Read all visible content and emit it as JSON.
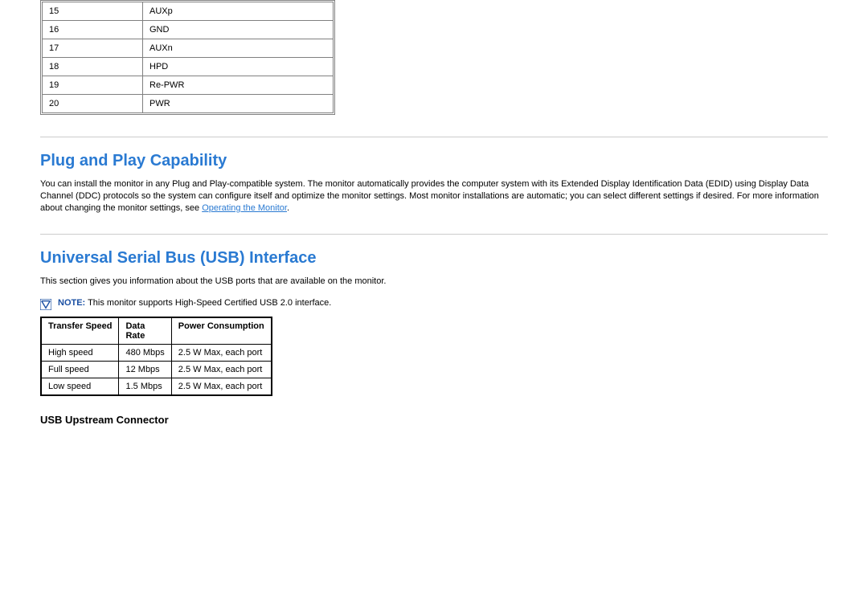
{
  "pin_table": {
    "col_widths": {
      "num": 108,
      "label": 220
    },
    "rows": [
      {
        "num": "15",
        "label": "AUXp"
      },
      {
        "num": "16",
        "label": "GND"
      },
      {
        "num": "17",
        "label": "AUXn"
      },
      {
        "num": "18",
        "label": "HPD"
      },
      {
        "num": "19",
        "label": "Re-PWR"
      },
      {
        "num": "20",
        "label": "PWR"
      }
    ]
  },
  "plug_and_play": {
    "title": "Plug and Play Capability",
    "body_before_link": "You can install the monitor in any Plug and Play-compatible system. The monitor automatically provides the computer system with its Extended Display Identification Data (EDID) using Display Data Channel (DDC) protocols so the system can configure itself and optimize the monitor settings. Most monitor installations are automatic; you can select different settings if desired. For more information about changing the monitor settings, see ",
    "link_text": "Operating the Monitor",
    "body_after_link": "."
  },
  "usb": {
    "title": "Universal Serial Bus (USB) Interface",
    "intro": "This section gives you information about the USB ports that are available on the monitor.",
    "note_label": "NOTE:",
    "note_text": " This monitor supports High-Speed Certified USB 2.0 interface.",
    "table": {
      "columns": [
        "Transfer Speed",
        "Data Rate",
        "Power Consumption"
      ],
      "rows": [
        [
          "High speed",
          "480 Mbps",
          "2.5 W Max, each port"
        ],
        [
          "Full speed",
          "12 Mbps",
          "2.5 W Max, each port"
        ],
        [
          "Low speed",
          "1.5 Mbps",
          "2.5 W Max, each port"
        ]
      ]
    },
    "upstream_title": "USB Upstream Connector"
  },
  "colors": {
    "heading": "#2a7ad2",
    "rule": "#cccccc",
    "pin_border": "#808080",
    "usb_border": "#000000",
    "note_label": "#1a4fa3"
  }
}
